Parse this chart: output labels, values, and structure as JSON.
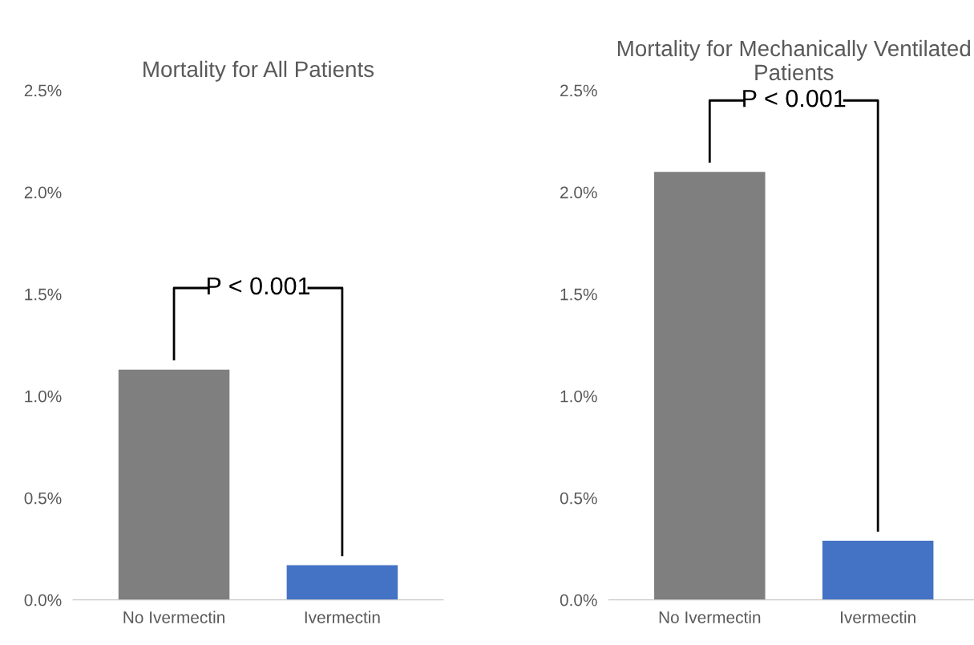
{
  "chart_data": [
    {
      "type": "bar",
      "title": "Mortality for All Patients",
      "categories": [
        "No Ivermectin",
        "Ivermectin"
      ],
      "values": [
        1.13,
        0.17
      ],
      "colors": [
        "#7f7f7f",
        "#4472c4"
      ],
      "ylim": [
        0,
        2.5
      ],
      "yticks": [
        {
          "value": 0,
          "label": "0.0%"
        },
        {
          "value": 0.5,
          "label": "0.5%"
        },
        {
          "value": 1,
          "label": "1.0%"
        },
        {
          "value": 1.5,
          "label": "1.5%"
        },
        {
          "value": 2,
          "label": "2.0%"
        },
        {
          "value": 2.5,
          "label": "2.5%"
        }
      ],
      "grid": false,
      "annotations": [
        "P < 0.001"
      ]
    },
    {
      "type": "bar",
      "title": "Mortality for Mechanically Ventilated Patients",
      "categories": [
        "No Ivermectin",
        "Ivermectin"
      ],
      "values": [
        2.1,
        0.29
      ],
      "colors": [
        "#7f7f7f",
        "#4472c4"
      ],
      "ylim": [
        0,
        2.5
      ],
      "yticks": [
        {
          "value": 0,
          "label": "0.0%"
        },
        {
          "value": 0.5,
          "label": "0.5%"
        },
        {
          "value": 1,
          "label": "1.0%"
        },
        {
          "value": 1.5,
          "label": "1.5%"
        },
        {
          "value": 2,
          "label": "2.0%"
        },
        {
          "value": 2.5,
          "label": "2.5%"
        }
      ],
      "grid": false,
      "annotations": [
        "P < 0.001"
      ]
    }
  ]
}
